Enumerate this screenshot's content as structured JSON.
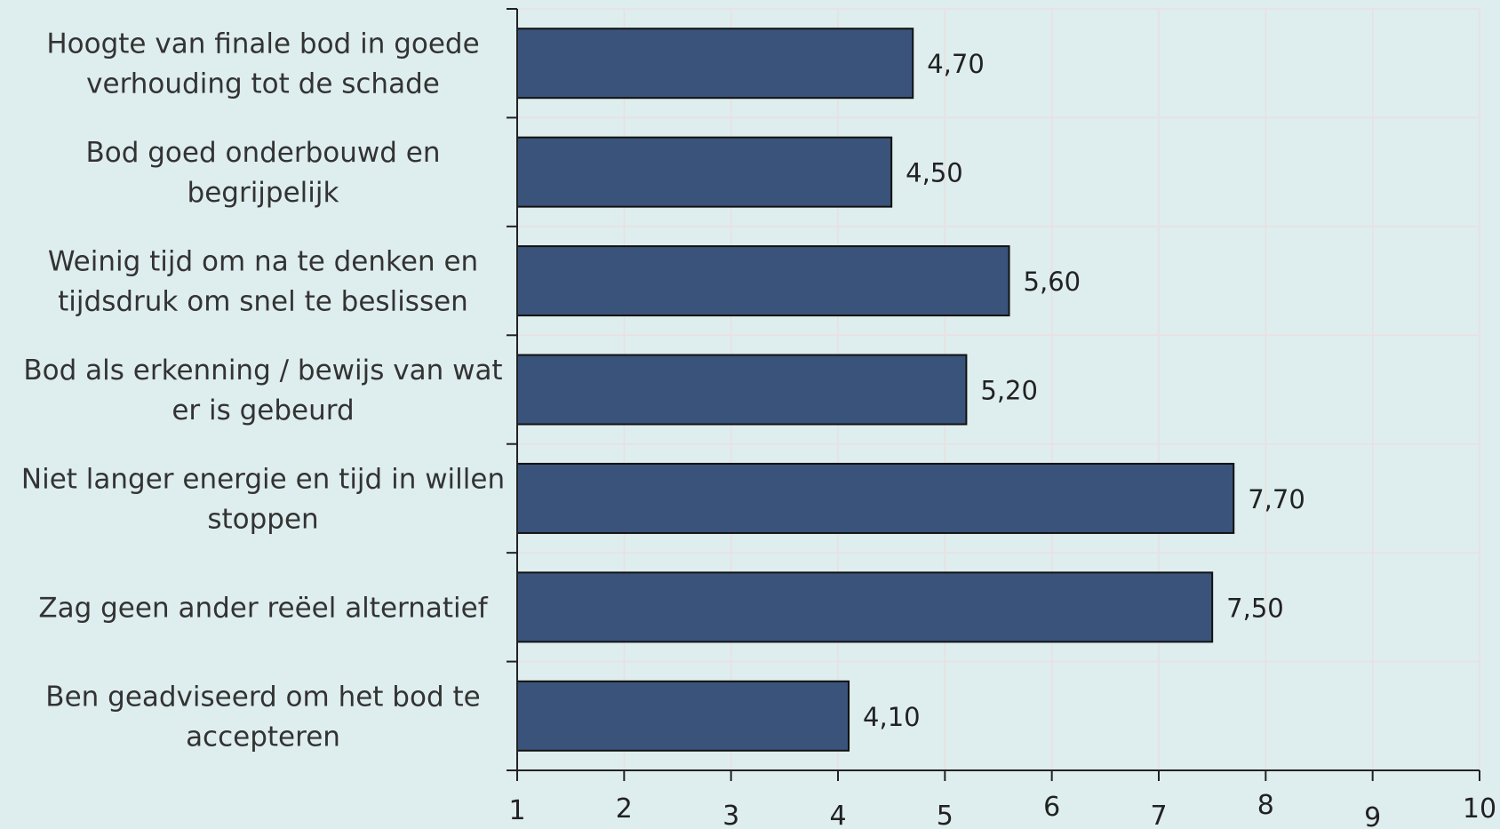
{
  "chart_data": {
    "type": "bar",
    "orientation": "horizontal",
    "categories": [
      [
        "Hoogte van finale bod in goede",
        "verhouding tot de schade"
      ],
      [
        "Bod goed onderbouwd en",
        "begrijpelijk"
      ],
      [
        "Weinig tijd om na te denken en",
        "tijdsdruk om snel te beslissen"
      ],
      [
        "Bod als erkenning / bewijs van wat",
        "er is gebeurd"
      ],
      [
        "Niet langer energie en tijd in willen",
        "stoppen"
      ],
      [
        "Zag geen ander reëel alternatief"
      ],
      [
        "Ben geadviseerd om het bod te",
        "accepteren"
      ]
    ],
    "values": [
      4.7,
      4.5,
      5.6,
      5.2,
      7.7,
      7.5,
      4.1
    ],
    "data_labels": [
      "4,70",
      "4,50",
      "5,60",
      "5,20",
      "7,70",
      "7,50",
      "4,10"
    ],
    "xlim": [
      1,
      10
    ],
    "xticks": [
      1,
      2,
      3,
      4,
      5,
      6,
      7,
      8,
      9,
      10
    ],
    "xtick_labels": [
      "1",
      "2",
      "3",
      "4",
      "5",
      "6",
      "7",
      "8",
      "9",
      "10"
    ],
    "grid": true,
    "title": "",
    "xlabel": "",
    "ylabel": "",
    "colors": {
      "bar_fill": "#3a537a",
      "bar_stroke": "#111111",
      "background": "#deedee",
      "grid": "#eadfe2",
      "axis": "#222222"
    }
  }
}
